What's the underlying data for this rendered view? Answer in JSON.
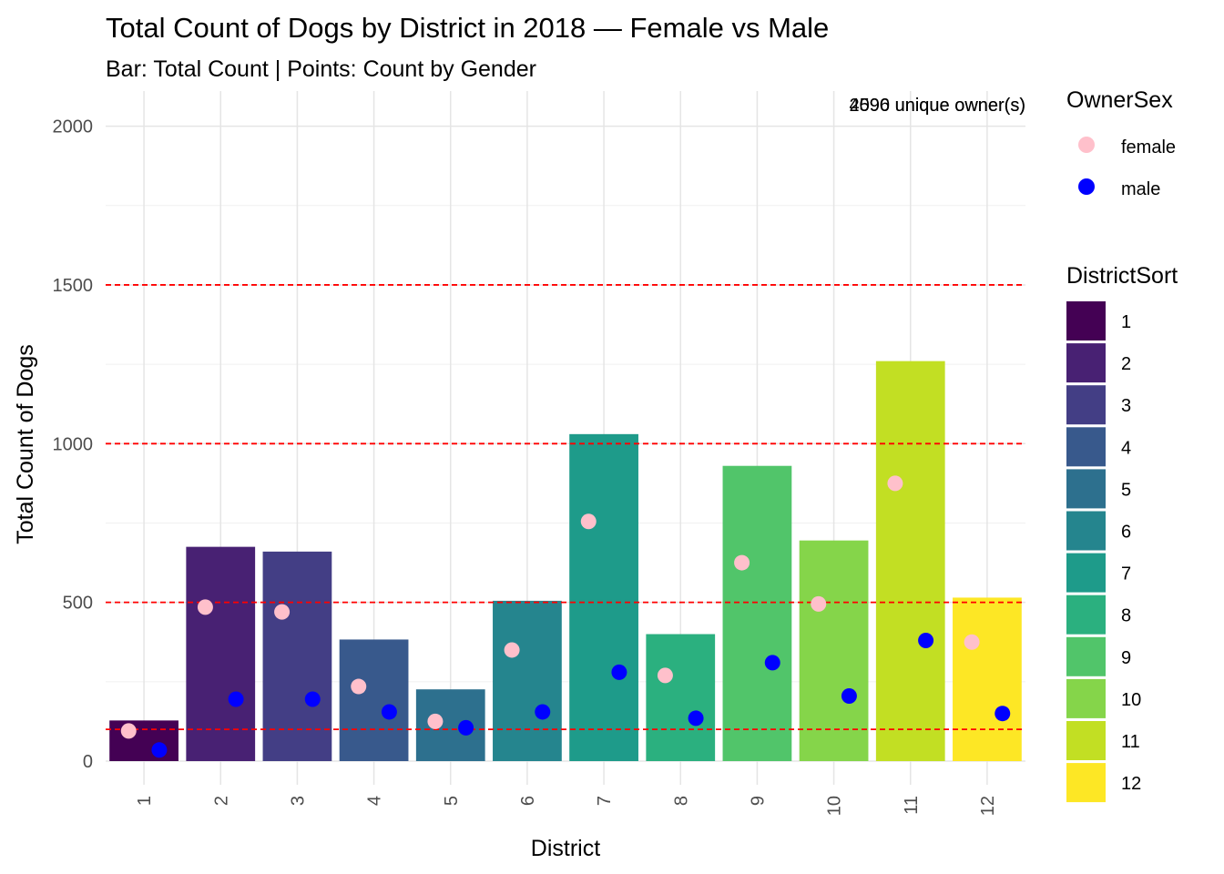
{
  "chart_data": {
    "type": "bar",
    "title": "Total Count of Dogs by District in 2018 — Female vs Male",
    "subtitle": "Bar: Total Count | Points: Count by Gender",
    "xlabel": "District",
    "ylabel": "Total Count of Dogs",
    "ylim": [
      0,
      2000
    ],
    "y_ticks": [
      0,
      500,
      1000,
      1500,
      2000
    ],
    "categories": [
      "1",
      "2",
      "3",
      "4",
      "5",
      "6",
      "7",
      "8",
      "9",
      "10",
      "11",
      "12"
    ],
    "values": [
      128,
      675,
      660,
      383,
      226,
      505,
      1030,
      400,
      930,
      695,
      1260,
      515
    ],
    "bar_colors": [
      "#440154",
      "#482173",
      "#433E85",
      "#38598C",
      "#2D708E",
      "#25858E",
      "#1E9B8A",
      "#2BB07F",
      "#51C56A",
      "#85D54A",
      "#C2DF23",
      "#FDE725"
    ],
    "series": [
      {
        "name": "female",
        "color": "#FFC0CB",
        "values": [
          95,
          485,
          470,
          235,
          125,
          350,
          755,
          270,
          625,
          495,
          875,
          375
        ]
      },
      {
        "name": "male",
        "color": "#0000FF",
        "values": [
          35,
          195,
          195,
          155,
          105,
          155,
          280,
          135,
          310,
          205,
          380,
          150
        ]
      }
    ],
    "reference_lines": [
      100,
      500,
      1000,
      1500
    ],
    "reference_line_color": "#FF0000",
    "annotation_texts": [
      "2596 unique owner(s)",
      "4090 unique owner(s)"
    ],
    "annotation_position": "top-right",
    "legend_placement": "right",
    "legends": [
      {
        "title": "OwnerSex",
        "items": [
          {
            "label": "female",
            "color": "#FFC0CB"
          },
          {
            "label": "male",
            "color": "#0000FF"
          }
        ]
      },
      {
        "title": "DistrictSort",
        "items": [
          {
            "label": "1",
            "color": "#440154"
          },
          {
            "label": "2",
            "color": "#482173"
          },
          {
            "label": "3",
            "color": "#433E85"
          },
          {
            "label": "4",
            "color": "#38598C"
          },
          {
            "label": "5",
            "color": "#2D708E"
          },
          {
            "label": "6",
            "color": "#25858E"
          },
          {
            "label": "7",
            "color": "#1E9B8A"
          },
          {
            "label": "8",
            "color": "#2BB07F"
          },
          {
            "label": "9",
            "color": "#51C56A"
          },
          {
            "label": "10",
            "color": "#85D54A"
          },
          {
            "label": "11",
            "color": "#C2DF23"
          },
          {
            "label": "12",
            "color": "#FDE725"
          }
        ]
      }
    ],
    "grid": true
  }
}
